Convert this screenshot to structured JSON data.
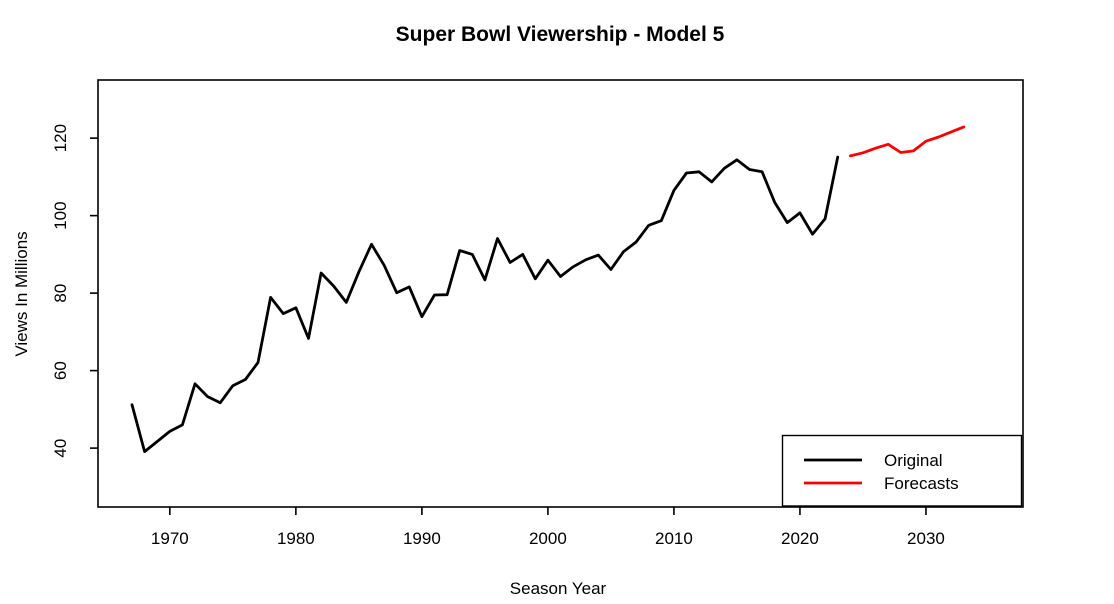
{
  "title": "Super Bowl Viewership - Model 5",
  "chart_data": {
    "type": "line",
    "title": "Super Bowl Viewership - Model 5",
    "xlabel": "Season Year",
    "ylabel": "Views In Millions",
    "xlim": [
      1964.3,
      2037.7
    ],
    "ylim": [
      24.8,
      135
    ],
    "x_ticks": [
      1970,
      1980,
      1990,
      2000,
      2010,
      2020,
      2030
    ],
    "y_ticks": [
      40,
      60,
      80,
      100,
      120
    ],
    "grid": false,
    "legend_position": "bottom-right",
    "series": [
      {
        "name": "Original",
        "color": "#000000",
        "x": [
          1967,
          1968,
          1969,
          1970,
          1971,
          1972,
          1973,
          1974,
          1975,
          1976,
          1977,
          1978,
          1979,
          1980,
          1981,
          1982,
          1983,
          1984,
          1985,
          1986,
          1987,
          1988,
          1989,
          1990,
          1991,
          1992,
          1993,
          1994,
          1995,
          1996,
          1997,
          1998,
          1999,
          2000,
          2001,
          2002,
          2003,
          2004,
          2005,
          2006,
          2007,
          2008,
          2009,
          2010,
          2011,
          2012,
          2013,
          2014,
          2015,
          2016,
          2017,
          2018,
          2019,
          2020,
          2021,
          2022,
          2023
        ],
        "values": [
          51.2,
          39.1,
          41.7,
          44.3,
          46.0,
          56.6,
          53.3,
          51.7,
          56.1,
          57.7,
          62.1,
          78.9,
          74.7,
          76.2,
          68.3,
          85.2,
          81.8,
          77.6,
          85.5,
          92.6,
          87.2,
          80.1,
          81.6,
          73.9,
          79.5,
          79.6,
          91.0,
          90.0,
          83.4,
          94.1,
          87.9,
          90.0,
          83.7,
          88.5,
          84.3,
          86.8,
          88.6,
          89.8,
          86.1,
          90.7,
          93.2,
          97.5,
          98.7,
          106.5,
          111.0,
          111.3,
          108.7,
          112.2,
          114.4,
          111.9,
          111.3,
          103.4,
          98.2,
          100.7,
          95.2,
          99.2,
          115.1
        ]
      },
      {
        "name": "Forecasts",
        "color": "#ff0000",
        "x": [
          2024,
          2025,
          2026,
          2027,
          2028,
          2029,
          2030,
          2031,
          2032,
          2033
        ],
        "values": [
          115.4,
          116.2,
          117.4,
          118.4,
          116.3,
          116.7,
          119.2,
          120.3,
          121.6,
          122.9
        ]
      }
    ]
  }
}
